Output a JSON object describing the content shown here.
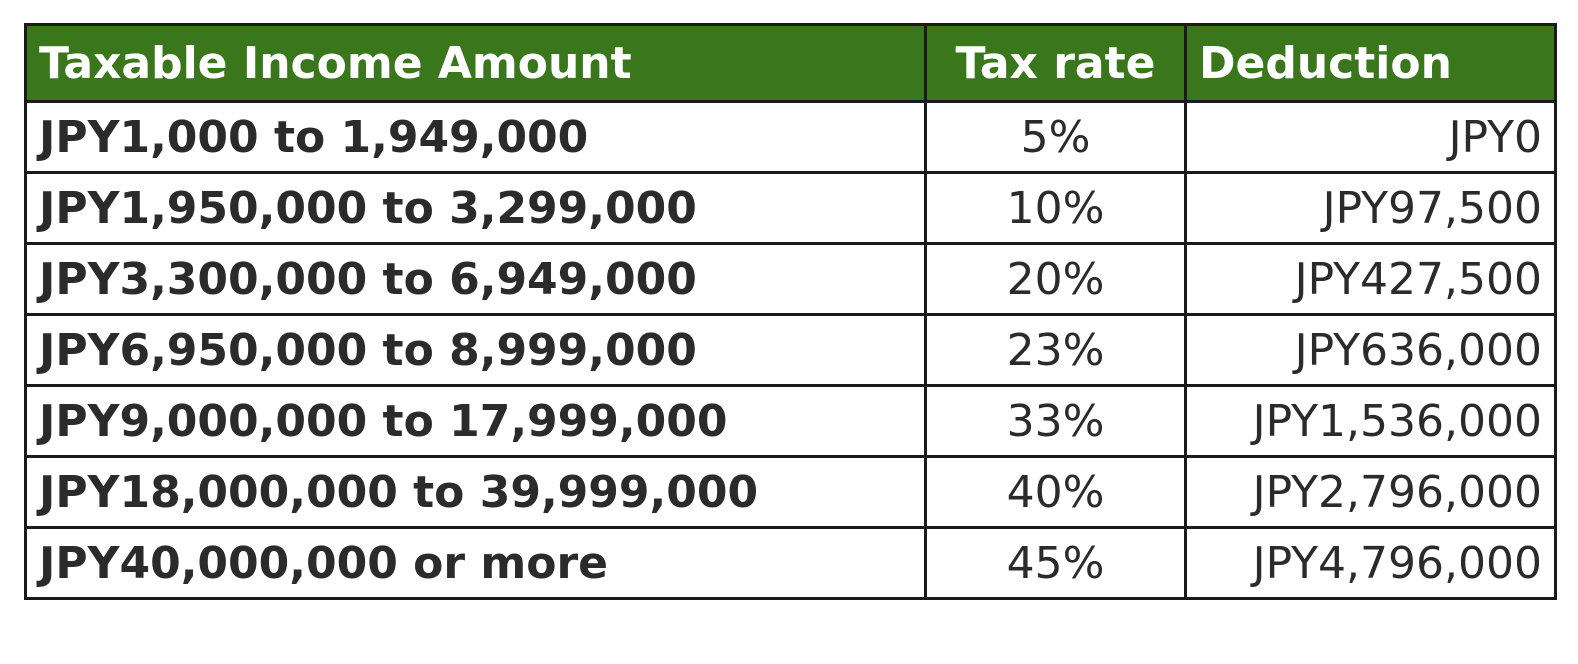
{
  "table": {
    "headers": {
      "income": "Taxable Income Amount",
      "rate": "Tax rate",
      "deduction": "Deduction"
    },
    "rows": [
      {
        "range": "JPY1,000 to 1,949,000",
        "rate": "5%",
        "deduction": "JPY0"
      },
      {
        "range": "JPY1,950,000 to 3,299,000",
        "rate": "10%",
        "deduction": "JPY97,500"
      },
      {
        "range": "JPY3,300,000 to 6,949,000",
        "rate": "20%",
        "deduction": "JPY427,500"
      },
      {
        "range": "JPY6,950,000 to 8,999,000",
        "rate": "23%",
        "deduction": "JPY636,000"
      },
      {
        "range": "JPY9,000,000 to 17,999,000",
        "rate": "33%",
        "deduction": "JPY1,536,000"
      },
      {
        "range": "JPY18,000,000 to 39,999,000",
        "rate": "40%",
        "deduction": "JPY2,796,000"
      },
      {
        "range": "JPY40,000,000 or more",
        "rate": "45%",
        "deduction": "JPY4,796,000"
      }
    ]
  },
  "colors": {
    "header_background": "#3a761c",
    "header_text": "#ffffff",
    "border": "#1a1a1a",
    "body_text": "#2b2b2b"
  }
}
